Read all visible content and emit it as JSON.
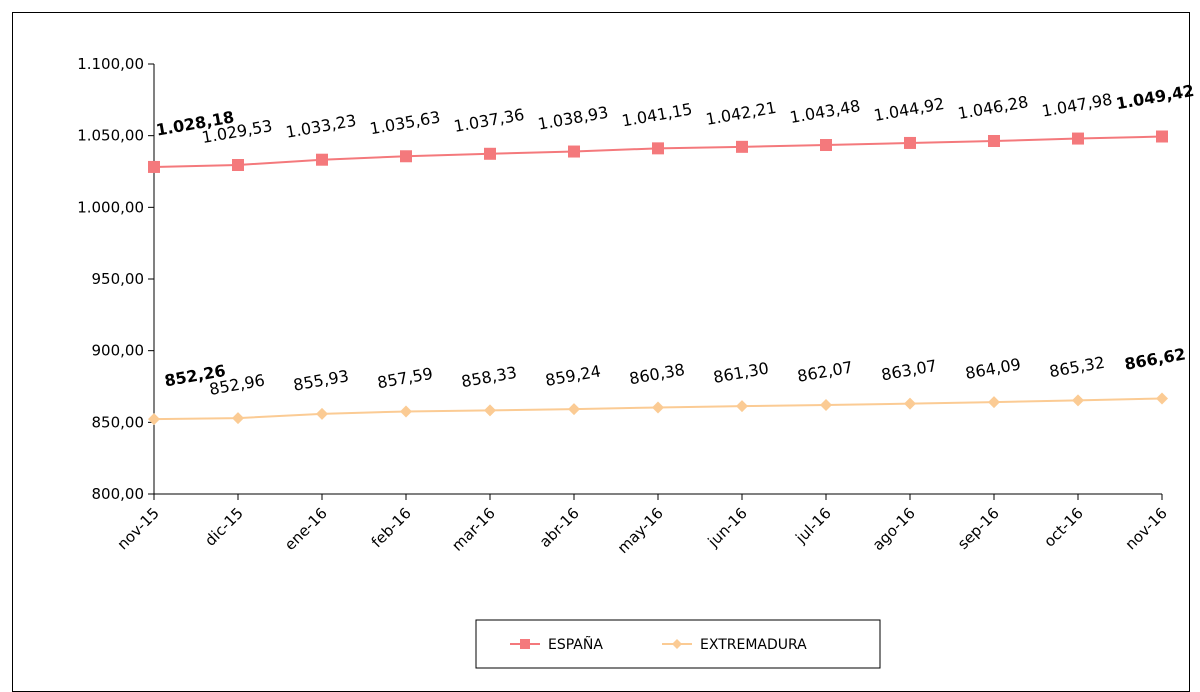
{
  "chart_data": {
    "type": "line",
    "title": "",
    "xlabel": "",
    "ylabel": "",
    "ylim": [
      800,
      1100
    ],
    "yticks": [
      800,
      850,
      900,
      950,
      1000,
      1050,
      1100
    ],
    "ytick_labels": [
      "800,00",
      "850,00",
      "900,00",
      "950,00",
      "1.000,00",
      "1.050,00",
      "1.100,00"
    ],
    "grid": false,
    "legend_position": "bottom",
    "categories": [
      "nov-15",
      "dic-15",
      "ene-16",
      "feb-16",
      "mar-16",
      "abr-16",
      "may-16",
      "jun-16",
      "jul-16",
      "ago-16",
      "sep-16",
      "oct-16",
      "nov-16"
    ],
    "series": [
      {
        "name": "ESPAÑA",
        "color": "#f4797c",
        "marker": "square",
        "values": [
          1028.18,
          1029.53,
          1033.23,
          1035.63,
          1037.36,
          1038.93,
          1041.15,
          1042.21,
          1043.48,
          1044.92,
          1046.28,
          1047.98,
          1049.42
        ],
        "labels": [
          "1.028,18",
          "1.029,53",
          "1.033,23",
          "1.035,63",
          "1.037,36",
          "1.038,93",
          "1.041,15",
          "1.042,21",
          "1.043,48",
          "1.044,92",
          "1.046,28",
          "1.047,98",
          "1.049,42"
        ]
      },
      {
        "name": "EXTREMADURA",
        "color": "#fbcb94",
        "marker": "diamond",
        "values": [
          852.26,
          852.96,
          855.93,
          857.59,
          858.33,
          859.24,
          860.38,
          861.3,
          862.07,
          863.07,
          864.09,
          865.32,
          866.62
        ],
        "labels": [
          "852,26",
          "852,96",
          "855,93",
          "857,59",
          "858,33",
          "859,24",
          "860,38",
          "861,30",
          "862,07",
          "863,07",
          "864,09",
          "865,32",
          "866,62"
        ]
      }
    ]
  }
}
